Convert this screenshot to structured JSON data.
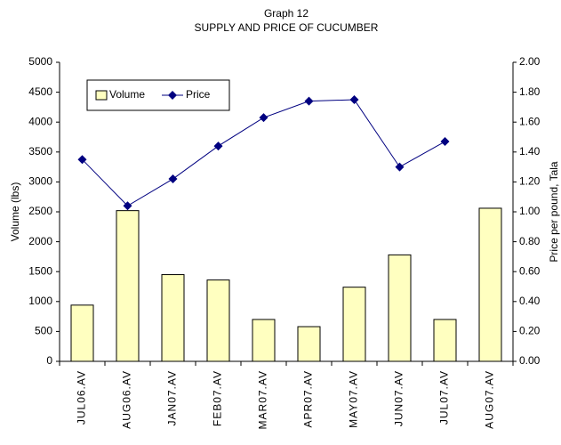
{
  "chart_data": {
    "type": "bar-line",
    "title": "Graph 12",
    "subtitle": "SUPPLY AND PRICE OF CUCUMBER",
    "categories": [
      "JUL06.AV",
      "AUG06.AV",
      "JAN07.AV",
      "FEB07.AV",
      "MAR07.AV",
      "APR07.AV",
      "MAY07.AV",
      "JUN07.AV",
      "JUL07.AV",
      "AUG07.AV"
    ],
    "series": [
      {
        "name": "Volume",
        "type": "bar",
        "color": "#ffffc0",
        "values": [
          940,
          2520,
          1450,
          1360,
          700,
          580,
          1240,
          1780,
          700,
          2560
        ]
      },
      {
        "name": "Price",
        "type": "line",
        "axis": "y2",
        "color": "#000080",
        "values": [
          1.35,
          1.04,
          1.22,
          1.44,
          1.63,
          1.74,
          1.75,
          1.3,
          1.47,
          null
        ]
      }
    ],
    "ylabel": "Volume (lbs)",
    "y2label": "Price per pound, Tala",
    "ylim": [
      0,
      5000
    ],
    "yticks": [
      0,
      500,
      1000,
      1500,
      2000,
      2500,
      3000,
      3500,
      4000,
      4500,
      5000
    ],
    "y2lim": [
      0,
      2
    ],
    "y2ticks": [
      {
        "value": 0,
        "label": "0.00"
      },
      {
        "value": 0.2,
        "label": "0.20"
      },
      {
        "value": 0.4,
        "label": "0.40"
      },
      {
        "value": 0.6,
        "label": "0.60"
      },
      {
        "value": 0.8,
        "label": "0.80"
      },
      {
        "value": 1,
        "label": "1.00"
      },
      {
        "value": 1.2,
        "label": "1.20"
      },
      {
        "value": 1.4,
        "label": "1.40"
      },
      {
        "value": 1.6,
        "label": "1.60"
      },
      {
        "value": 1.8,
        "label": "1.80"
      },
      {
        "value": 2,
        "label": "2.00"
      }
    ],
    "legend": "upper left"
  }
}
